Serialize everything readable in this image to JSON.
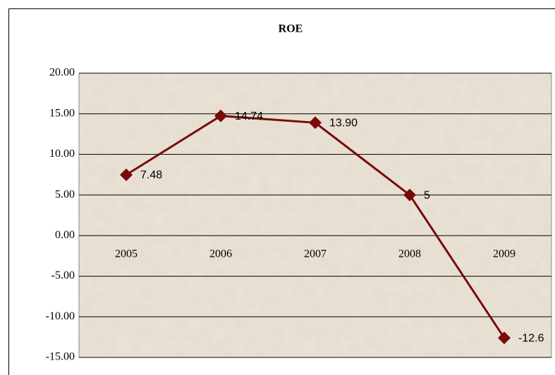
{
  "chart_data": {
    "type": "line",
    "title": "ROE",
    "categories": [
      "2005",
      "2006",
      "2007",
      "2008",
      "2009"
    ],
    "values": [
      7.48,
      14.74,
      13.9,
      5,
      -12.6
    ],
    "value_labels": [
      "7.48",
      "14.74",
      "13.90",
      "5",
      "-12.6"
    ],
    "color": "#7a0a0a",
    "ylim": [
      -15,
      20
    ],
    "yticks": [
      {
        "value": -15,
        "label": "-15.00"
      },
      {
        "value": -10,
        "label": "-10.00"
      },
      {
        "value": -5,
        "label": "-5.00"
      },
      {
        "value": 0,
        "label": "0.00"
      },
      {
        "value": 5,
        "label": "5.00"
      },
      {
        "value": 10,
        "label": "10.00"
      },
      {
        "value": 15,
        "label": "15.00"
      },
      {
        "value": 20,
        "label": "20.00"
      }
    ],
    "grid": true
  }
}
